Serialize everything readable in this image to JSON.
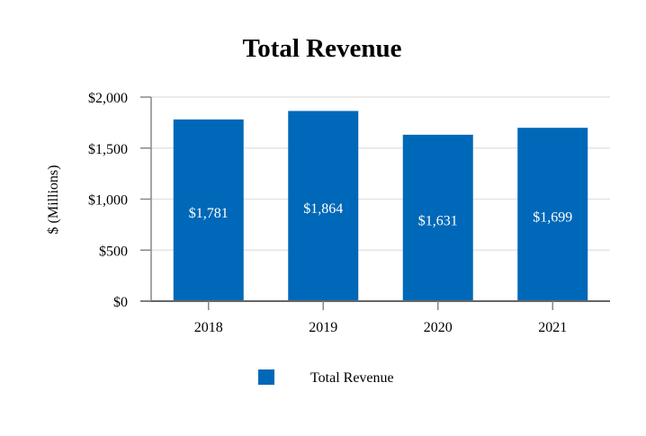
{
  "chart_data": {
    "type": "bar",
    "title": "Total Revenue",
    "xlabel": "",
    "ylabel": "$ (Millions)",
    "categories": [
      "2018",
      "2019",
      "2020",
      "2021"
    ],
    "series": [
      {
        "name": "Total Revenue",
        "values": [
          1781,
          1864,
          1631,
          1699
        ],
        "color": "#0068b8"
      }
    ],
    "data_labels": [
      "$1,781",
      "$1,864",
      "$1,631",
      "$1,699"
    ],
    "ylim": [
      0,
      2000
    ],
    "yticks": [
      0,
      500,
      1000,
      1500,
      2000
    ],
    "ytick_labels": [
      "$0",
      "$500",
      "$1,000",
      "$1,500",
      "$2,000"
    ],
    "grid": true,
    "legend_position": "bottom"
  }
}
